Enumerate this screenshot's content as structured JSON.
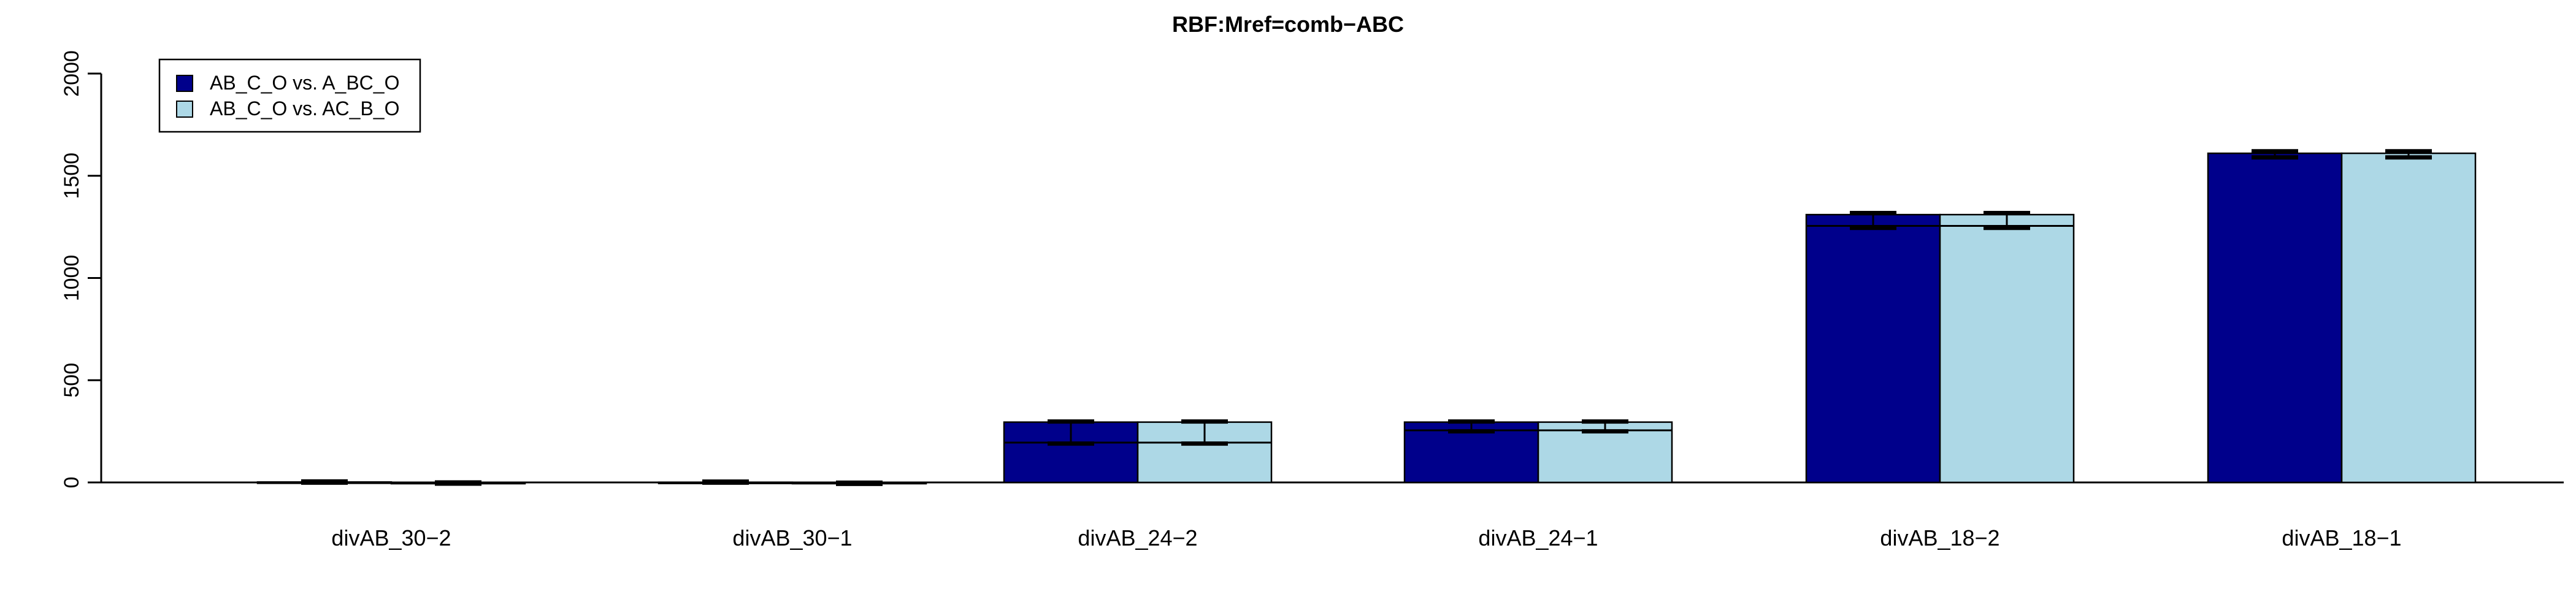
{
  "chart_data": {
    "type": "bar",
    "title": "RBF:Mref=comb−ABC",
    "xlabel": "",
    "ylabel": "",
    "ylim": [
      0,
      2000
    ],
    "yticks": [
      0,
      500,
      1000,
      1500,
      2000
    ],
    "ytick_labels": [
      "0",
      "500",
      "1000",
      "1500",
      "2000"
    ],
    "categories": [
      "divAB_30−2",
      "divAB_30−1",
      "divAB_24−2",
      "divAB_24−1",
      "divAB_18−2",
      "divAB_18−1"
    ],
    "series": [
      {
        "name": "AB_C_O vs. A_BC_O",
        "color": "#00008B",
        "values": [
          2,
          1,
          295,
          295,
          1310,
          1610
        ],
        "error_high": [
          5,
          4,
          298,
          298,
          1318,
          1620
        ],
        "error_low": [
          -1,
          -1,
          190,
          250,
          1245,
          1590
        ],
        "inner_line": [
          null,
          null,
          195,
          255,
          1255,
          null
        ]
      },
      {
        "name": "AB_C_O vs. AC_B_O",
        "color": "#ADD8E6",
        "values": [
          -3,
          -4,
          295,
          295,
          1310,
          1610
        ],
        "error_high": [
          0,
          -1,
          298,
          298,
          1318,
          1620
        ],
        "error_low": [
          -6,
          -7,
          190,
          250,
          1245,
          1590
        ],
        "inner_line": [
          null,
          null,
          195,
          255,
          1255,
          null
        ]
      }
    ],
    "legend": "top-left",
    "grid": false
  }
}
